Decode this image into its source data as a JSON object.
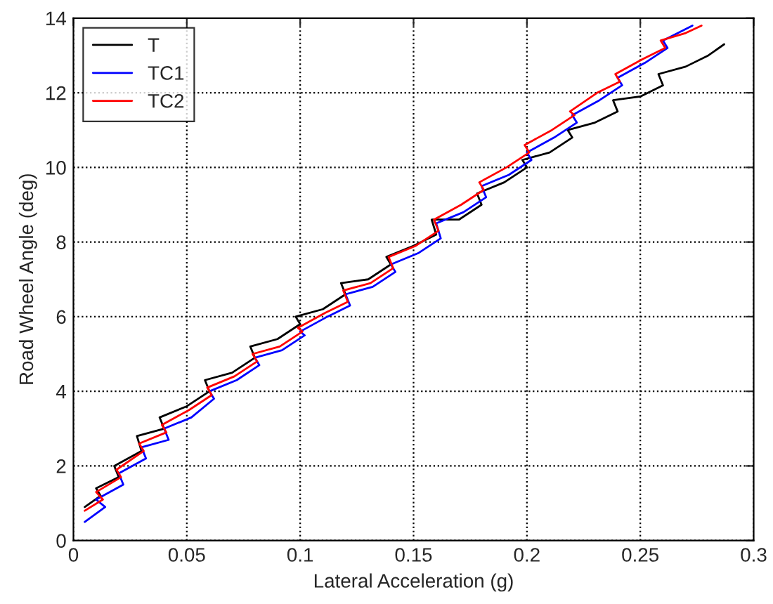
{
  "chart_data": {
    "type": "line",
    "xlabel": "Lateral Acceleration (g)",
    "ylabel": "Road Wheel Angle (deg)",
    "xlim": [
      0,
      0.3
    ],
    "xticks": [
      0,
      0.05,
      0.1,
      0.15,
      0.2,
      0.25,
      0.3
    ],
    "ylim": [
      0,
      14
    ],
    "yticks": [
      0,
      2,
      4,
      6,
      8,
      10,
      12,
      14
    ],
    "grid": true,
    "legend": "top left",
    "line_style": "solid",
    "marker": "none",
    "series": [
      {
        "name": "T",
        "color": "#000000",
        "x": [
          0.005,
          0.012,
          0.01,
          0.02,
          0.018,
          0.03,
          0.028,
          0.04,
          0.038,
          0.05,
          0.06,
          0.058,
          0.07,
          0.08,
          0.078,
          0.09,
          0.1,
          0.098,
          0.11,
          0.12,
          0.118,
          0.13,
          0.14,
          0.138,
          0.15,
          0.16,
          0.158,
          0.17,
          0.18,
          0.178,
          0.19,
          0.2,
          0.198,
          0.21,
          0.22,
          0.218,
          0.23,
          0.24,
          0.238,
          0.25,
          0.26,
          0.258,
          0.27,
          0.28,
          0.287
        ],
        "values": [
          0.9,
          1.2,
          1.4,
          1.7,
          2.0,
          2.4,
          2.8,
          3.0,
          3.3,
          3.6,
          4.0,
          4.3,
          4.5,
          4.9,
          5.2,
          5.4,
          5.8,
          6.0,
          6.2,
          6.6,
          6.9,
          7.0,
          7.4,
          7.6,
          7.9,
          8.2,
          8.6,
          8.6,
          9.0,
          9.3,
          9.6,
          10.0,
          10.2,
          10.4,
          10.8,
          11.0,
          11.2,
          11.5,
          11.8,
          11.9,
          12.2,
          12.5,
          12.7,
          13.0,
          13.3
        ]
      },
      {
        "name": "TC1",
        "color": "#0000ff",
        "x": [
          0.005,
          0.014,
          0.01,
          0.022,
          0.02,
          0.032,
          0.03,
          0.042,
          0.04,
          0.052,
          0.062,
          0.06,
          0.072,
          0.082,
          0.08,
          0.092,
          0.102,
          0.1,
          0.112,
          0.122,
          0.12,
          0.132,
          0.142,
          0.14,
          0.152,
          0.162,
          0.16,
          0.172,
          0.182,
          0.18,
          0.192,
          0.202,
          0.2,
          0.212,
          0.222,
          0.22,
          0.232,
          0.242,
          0.24,
          0.252,
          0.262,
          0.26,
          0.273
        ],
        "values": [
          0.5,
          0.9,
          1.1,
          1.5,
          1.8,
          2.2,
          2.5,
          2.7,
          3.0,
          3.3,
          3.8,
          4.0,
          4.3,
          4.7,
          4.9,
          5.1,
          5.5,
          5.6,
          6.0,
          6.3,
          6.6,
          6.8,
          7.2,
          7.4,
          7.7,
          8.1,
          8.5,
          8.8,
          9.2,
          9.5,
          9.8,
          10.2,
          10.4,
          10.8,
          11.2,
          11.4,
          11.8,
          12.2,
          12.4,
          12.8,
          13.2,
          13.4,
          13.8
        ]
      },
      {
        "name": "TC2",
        "color": "#ff0000",
        "x": [
          0.005,
          0.013,
          0.01,
          0.021,
          0.019,
          0.031,
          0.029,
          0.041,
          0.039,
          0.051,
          0.061,
          0.059,
          0.071,
          0.081,
          0.079,
          0.091,
          0.101,
          0.099,
          0.111,
          0.121,
          0.119,
          0.131,
          0.141,
          0.139,
          0.151,
          0.161,
          0.159,
          0.171,
          0.181,
          0.179,
          0.191,
          0.201,
          0.199,
          0.211,
          0.221,
          0.219,
          0.231,
          0.241,
          0.239,
          0.251,
          0.261,
          0.259,
          0.27,
          0.277
        ],
        "values": [
          0.8,
          1.1,
          1.3,
          1.7,
          1.9,
          2.4,
          2.6,
          2.9,
          3.1,
          3.5,
          3.9,
          4.1,
          4.4,
          4.8,
          5.0,
          5.2,
          5.6,
          5.7,
          6.1,
          6.4,
          6.7,
          6.9,
          7.3,
          7.6,
          7.9,
          8.3,
          8.6,
          9.0,
          9.4,
          9.6,
          10.0,
          10.4,
          10.6,
          11.0,
          11.4,
          11.5,
          12.0,
          12.3,
          12.5,
          12.9,
          13.2,
          13.4,
          13.6,
          13.8
        ]
      }
    ]
  }
}
